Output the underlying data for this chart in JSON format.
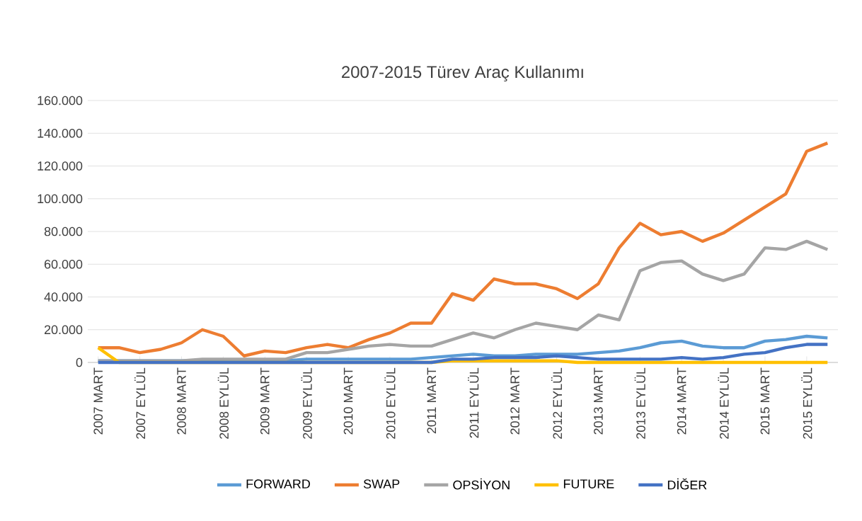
{
  "chart_data": {
    "type": "line",
    "title": "2007-2015 Türev Araç Kullanımı",
    "categories": [
      "2007 MART",
      null,
      "2007 EYLÜL",
      null,
      "2008 MART",
      null,
      "2008 EYLÜL",
      null,
      "2009 MART",
      null,
      "2009 EYLÜL",
      null,
      "2010 MART",
      null,
      "2010 EYLÜL",
      null,
      "2011 MART",
      null,
      "2011 EYLÜL",
      null,
      "2012 MART",
      null,
      "2012 EYLÜL",
      null,
      "2013 MART",
      null,
      "2013 EYLÜL",
      null,
      "2014 MART",
      null,
      "2014 EYLÜL",
      null,
      "2015 MART",
      null,
      "2015 EYLÜL",
      null
    ],
    "series": [
      {
        "name": "FORWARD",
        "color": "#5b9bd5",
        "values": [
          1000,
          1000,
          1000,
          1000,
          1000,
          1000,
          1000,
          1000,
          1000,
          1000,
          2000,
          2000,
          2000,
          2000,
          2000,
          2000,
          3000,
          4000,
          5000,
          4000,
          4000,
          5000,
          5000,
          5000,
          6000,
          7000,
          9000,
          12000,
          13000,
          10000,
          9000,
          9000,
          13000,
          14000,
          16000,
          15000
        ]
      },
      {
        "name": "SWAP",
        "color": "#ed7d31",
        "values": [
          9000,
          9000,
          6000,
          8000,
          12000,
          20000,
          16000,
          4000,
          7000,
          6000,
          9000,
          11000,
          9000,
          14000,
          18000,
          24000,
          24000,
          42000,
          38000,
          51000,
          48000,
          48000,
          45000,
          39000,
          48000,
          70000,
          85000,
          78000,
          80000,
          74000,
          79000,
          87000,
          95000,
          103000,
          129000,
          134000
        ]
      },
      {
        "name": "OPSİYON",
        "color": "#a5a5a5",
        "values": [
          1000,
          1000,
          1000,
          1000,
          1000,
          2000,
          2000,
          2000,
          2000,
          2000,
          6000,
          6000,
          8000,
          10000,
          11000,
          10000,
          10000,
          14000,
          18000,
          15000,
          20000,
          24000,
          22000,
          20000,
          29000,
          26000,
          56000,
          61000,
          62000,
          54000,
          50000,
          54000,
          70000,
          69000,
          74000,
          69000
        ]
      },
      {
        "name": "FUTURE",
        "color": "#ffc000",
        "values": [
          9000,
          0,
          0,
          0,
          0,
          0,
          0,
          0,
          0,
          0,
          0,
          0,
          0,
          0,
          0,
          0,
          0,
          1000,
          1000,
          1000,
          1000,
          1000,
          1000,
          0,
          0,
          0,
          0,
          0,
          0,
          0,
          0,
          0,
          0,
          0,
          0,
          0
        ]
      },
      {
        "name": "DİĞER",
        "color": "#4472c4",
        "values": [
          0,
          0,
          0,
          0,
          0,
          0,
          0,
          0,
          0,
          0,
          0,
          0,
          0,
          0,
          0,
          0,
          0,
          2000,
          2000,
          3000,
          3000,
          3000,
          4000,
          3000,
          2000,
          2000,
          2000,
          2000,
          3000,
          2000,
          3000,
          5000,
          6000,
          9000,
          11000,
          11000
        ]
      }
    ],
    "ylim": [
      0,
      160000
    ],
    "yticks": [
      {
        "value": 0,
        "label": "0"
      },
      {
        "value": 20000,
        "label": "20.000"
      },
      {
        "value": 40000,
        "label": "40.000"
      },
      {
        "value": 60000,
        "label": "60.000"
      },
      {
        "value": 80000,
        "label": "80.000"
      },
      {
        "value": 100000,
        "label": "100.000"
      },
      {
        "value": 120000,
        "label": "120.000"
      },
      {
        "value": 140000,
        "label": "140.000"
      },
      {
        "value": 160000,
        "label": "160.000"
      }
    ],
    "grid": "y",
    "legend": "bottom",
    "marker": "none",
    "line_style": "solid"
  }
}
